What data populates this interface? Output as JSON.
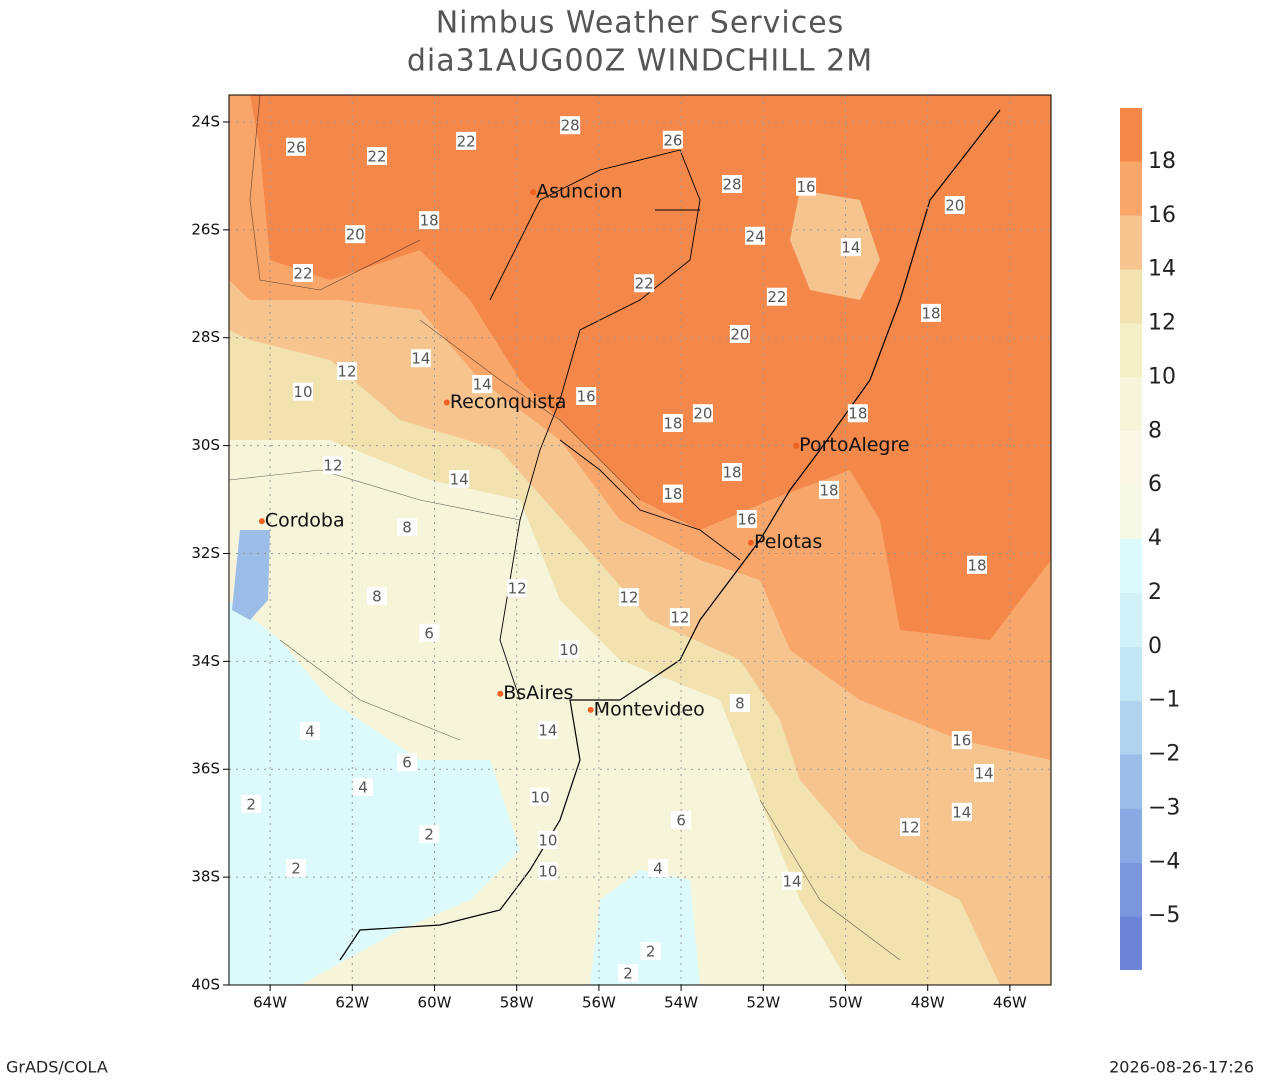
{
  "header": {
    "title": "Nimbus Weather Services",
    "subtitle": "dia31AUG00Z WINDCHILL 2M"
  },
  "map": {
    "xlim": [
      -65,
      -45
    ],
    "ylim": [
      -40,
      -23.5
    ],
    "xticks": [
      {
        "value": -64,
        "label": "64W"
      },
      {
        "value": -62,
        "label": "62W"
      },
      {
        "value": -60,
        "label": "60W"
      },
      {
        "value": -58,
        "label": "58W"
      },
      {
        "value": -56,
        "label": "56W"
      },
      {
        "value": -54,
        "label": "54W"
      },
      {
        "value": -52,
        "label": "52W"
      },
      {
        "value": -50,
        "label": "50W"
      },
      {
        "value": -48,
        "label": "48W"
      },
      {
        "value": -46,
        "label": "46W"
      }
    ],
    "yticks": [
      {
        "value": -24,
        "label": "24S"
      },
      {
        "value": -26,
        "label": "26S"
      },
      {
        "value": -28,
        "label": "28S"
      },
      {
        "value": -30,
        "label": "30S"
      },
      {
        "value": -32,
        "label": "32S"
      },
      {
        "value": -34,
        "label": "34S"
      },
      {
        "value": -36,
        "label": "36S"
      },
      {
        "value": -38,
        "label": "38S"
      },
      {
        "value": -40,
        "label": "40S"
      }
    ],
    "grid": true,
    "cities": [
      {
        "name": "Asuncion",
        "lon": -57.6,
        "lat": -25.3
      },
      {
        "name": "Reconquista",
        "lon": -59.7,
        "lat": -29.2
      },
      {
        "name": "Cordoba",
        "lon": -64.2,
        "lat": -31.4
      },
      {
        "name": "BsAires",
        "lon": -58.4,
        "lat": -34.6
      },
      {
        "name": "Montevideo",
        "lon": -56.2,
        "lat": -34.9
      },
      {
        "name": "PortoAlegre",
        "lon": -51.2,
        "lat": -30.0
      },
      {
        "name": "Pelotas",
        "lon": -52.3,
        "lat": -31.8
      }
    ],
    "contour_labels": [
      {
        "lon": -59.23,
        "lat": -24.35,
        "value": 22
      },
      {
        "lon": -63.37,
        "lat": -24.46,
        "value": 26
      },
      {
        "lon": -61.4,
        "lat": -24.63,
        "value": 22
      },
      {
        "lon": -56.7,
        "lat": -24.06,
        "value": 28
      },
      {
        "lon": -54.2,
        "lat": -24.33,
        "value": 26
      },
      {
        "lon": -52.76,
        "lat": -25.15,
        "value": 28
      },
      {
        "lon": -60.13,
        "lat": -25.82,
        "value": 18
      },
      {
        "lon": -61.93,
        "lat": -26.08,
        "value": 20
      },
      {
        "lon": -52.2,
        "lat": -26.11,
        "value": 24
      },
      {
        "lon": -63.2,
        "lat": -26.8,
        "value": 22
      },
      {
        "lon": -54.9,
        "lat": -26.99,
        "value": 22
      },
      {
        "lon": -51.67,
        "lat": -27.24,
        "value": 22
      },
      {
        "lon": -52.57,
        "lat": -27.93,
        "value": 20
      },
      {
        "lon": -49.87,
        "lat": -26.32,
        "value": 14
      },
      {
        "lon": -50.96,
        "lat": -25.2,
        "value": 16
      },
      {
        "lon": -47.92,
        "lat": -27.54,
        "value": 18
      },
      {
        "lon": -47.34,
        "lat": -25.54,
        "value": 20
      },
      {
        "lon": -60.33,
        "lat": -28.38,
        "value": 14
      },
      {
        "lon": -62.13,
        "lat": -28.62,
        "value": 12
      },
      {
        "lon": -58.84,
        "lat": -28.86,
        "value": 14
      },
      {
        "lon": -56.31,
        "lat": -29.08,
        "value": 16
      },
      {
        "lon": -53.47,
        "lat": -29.4,
        "value": 20
      },
      {
        "lon": -54.2,
        "lat": -29.58,
        "value": 18
      },
      {
        "lon": -49.7,
        "lat": -29.4,
        "value": 18
      },
      {
        "lon": -59.4,
        "lat": -30.62,
        "value": 14
      },
      {
        "lon": -62.47,
        "lat": -30.36,
        "value": 12
      },
      {
        "lon": -54.2,
        "lat": -30.89,
        "value": 18
      },
      {
        "lon": -52.76,
        "lat": -30.49,
        "value": 18
      },
      {
        "lon": -52.4,
        "lat": -31.36,
        "value": 16
      },
      {
        "lon": -50.4,
        "lat": -30.82,
        "value": 18
      },
      {
        "lon": -60.67,
        "lat": -31.51,
        "value": 8
      },
      {
        "lon": -57.99,
        "lat": -32.64,
        "value": 12
      },
      {
        "lon": -61.4,
        "lat": -32.79,
        "value": 8
      },
      {
        "lon": -60.13,
        "lat": -33.47,
        "value": 6
      },
      {
        "lon": -55.27,
        "lat": -32.81,
        "value": 12
      },
      {
        "lon": -54.03,
        "lat": -33.18,
        "value": 12
      },
      {
        "lon": -56.73,
        "lat": -33.78,
        "value": 10
      },
      {
        "lon": -57.24,
        "lat": -35.27,
        "value": 14
      },
      {
        "lon": -52.57,
        "lat": -34.77,
        "value": 8
      },
      {
        "lon": -47.17,
        "lat": -35.46,
        "value": 16
      },
      {
        "lon": -46.63,
        "lat": -36.07,
        "value": 14
      },
      {
        "lon": -47.17,
        "lat": -36.79,
        "value": 14
      },
      {
        "lon": -48.43,
        "lat": -37.07,
        "value": 12
      },
      {
        "lon": -57.43,
        "lat": -36.51,
        "value": 10
      },
      {
        "lon": -57.24,
        "lat": -37.31,
        "value": 10
      },
      {
        "lon": -57.24,
        "lat": -37.89,
        "value": 10
      },
      {
        "lon": -60.67,
        "lat": -35.87,
        "value": 6
      },
      {
        "lon": -63.03,
        "lat": -35.29,
        "value": 4
      },
      {
        "lon": -61.74,
        "lat": -36.33,
        "value": 4
      },
      {
        "lon": -60.13,
        "lat": -37.2,
        "value": 2
      },
      {
        "lon": -63.37,
        "lat": -37.83,
        "value": 2
      },
      {
        "lon": -54.0,
        "lat": -36.94,
        "value": 6
      },
      {
        "lon": -54.56,
        "lat": -37.83,
        "value": 4
      },
      {
        "lon": -54.74,
        "lat": -39.37,
        "value": 2
      },
      {
        "lon": -55.29,
        "lat": -39.78,
        "value": 2
      },
      {
        "lon": -51.3,
        "lat": -38.07,
        "value": 14
      },
      {
        "lon": -46.8,
        "lat": -32.21,
        "value": 18
      },
      {
        "lon": -64.46,
        "lat": -36.64,
        "value": 2
      },
      {
        "lon": -63.2,
        "lat": -29.0,
        "value": 10
      }
    ]
  },
  "colorbar": {
    "ticks": [
      {
        "value": -5,
        "label": "−5"
      },
      {
        "value": -4,
        "label": "−4"
      },
      {
        "value": -3,
        "label": "−3"
      },
      {
        "value": -2,
        "label": "−2"
      },
      {
        "value": -1,
        "label": "−1"
      },
      0,
      2,
      4,
      6,
      8,
      10,
      12,
      14,
      16,
      18
    ],
    "colors": [
      "#6d84d6",
      "#7c96dc",
      "#8aa8e2",
      "#9cbde8",
      "#b1d3ee",
      "#c3e6f4",
      "#d2f2f9",
      "#dcf9fb",
      "#f5f9e5",
      "#f9f8e6",
      "#f7f5d9",
      "#f3f0c8",
      "#f1e2b0",
      "#f6c48e",
      "#f9a66a",
      "#f4874a"
    ]
  },
  "footer": {
    "left": "GrADS/COLA",
    "right": "2026-08-26-17:26"
  }
}
